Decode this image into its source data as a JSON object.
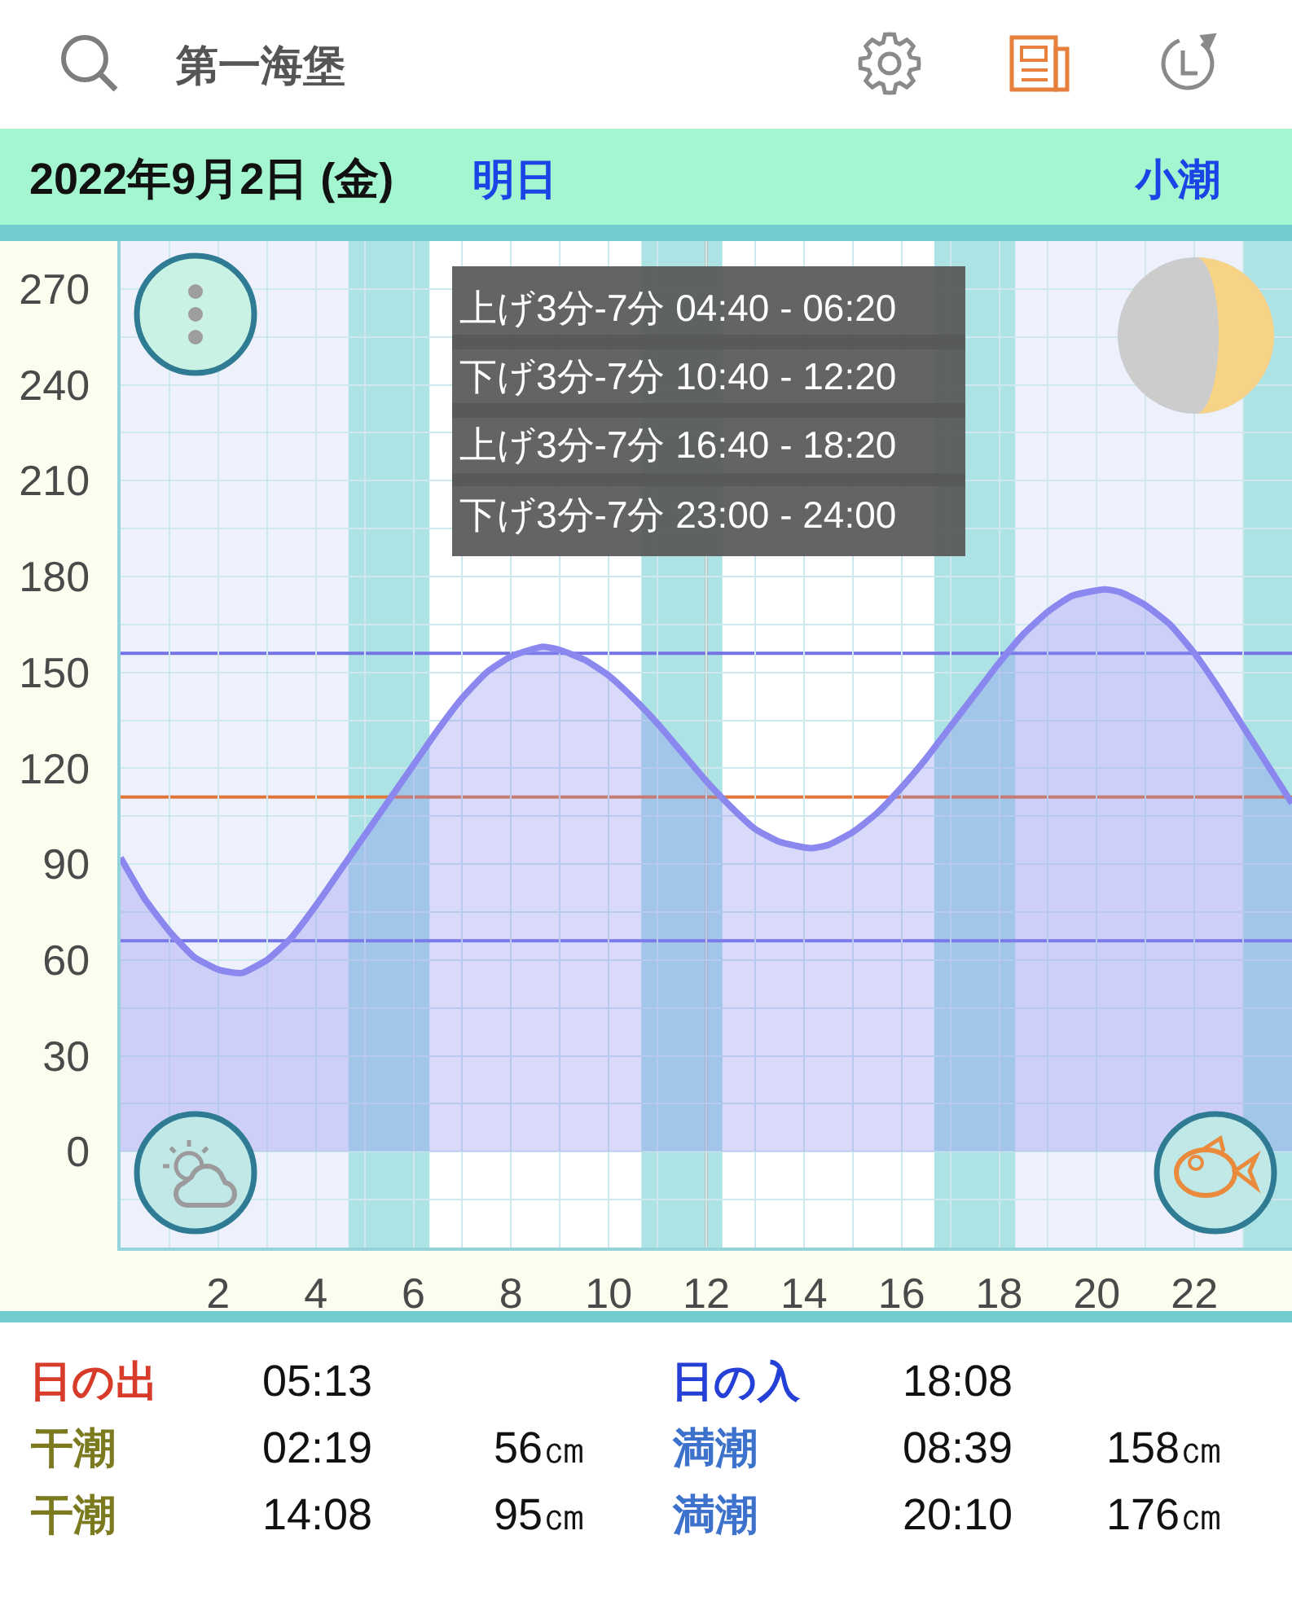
{
  "chart_data": {
    "type": "area",
    "title": "第一海堡",
    "subtitle": "2022年9月2日 (金)",
    "annotations": [
      "明日",
      "小潮",
      "上げ3分-7分 04:40 - 06:20",
      "下げ3分-7分 10:40 - 12:20",
      "上げ3分-7分 16:40 - 18:20",
      "下げ3分-7分 23:00 - 24:00",
      "日の出",
      "05:13",
      "日の入",
      "18:08",
      "干潮",
      "02:19",
      "56㎝",
      "満潮",
      "08:39",
      "158㎝",
      "干潮",
      "14:08",
      "95㎝",
      "満潮",
      "20:10",
      "176㎝"
    ],
    "x": [
      0,
      0.5,
      1,
      1.5,
      2,
      2.32,
      2.5,
      3,
      3.5,
      4,
      4.5,
      5,
      5.5,
      6,
      6.5,
      7,
      7.5,
      8,
      8.65,
      9,
      9.5,
      10,
      10.5,
      11,
      11.5,
      12,
      12.5,
      13,
      13.5,
      14.13,
      14.5,
      15,
      15.5,
      16,
      16.5,
      17,
      17.5,
      18,
      18.5,
      19,
      19.5,
      20.17,
      20.5,
      21,
      21.5,
      22,
      22.5,
      23,
      23.5,
      24
    ],
    "values": [
      92,
      79,
      69,
      61,
      57,
      56,
      56,
      60,
      67,
      77,
      88,
      99,
      110,
      121,
      132,
      142,
      150,
      155,
      158,
      157,
      154,
      149,
      142,
      134,
      125,
      116,
      108,
      101,
      97,
      95,
      96,
      100,
      106,
      114,
      123,
      133,
      143,
      153,
      162,
      169,
      174,
      176,
      175,
      171,
      165,
      156,
      145,
      133,
      121,
      109
    ],
    "color": "#8a88ee",
    "xlim": [
      0,
      24
    ],
    "ylim": [
      -30,
      285
    ],
    "xticks": [
      {
        "value": 1,
        "label": null
      },
      2,
      {
        "value": 3,
        "label": null
      },
      4,
      {
        "value": 5,
        "label": null
      },
      6,
      {
        "value": 7,
        "label": null
      },
      8,
      {
        "value": 9,
        "label": null
      },
      10,
      {
        "value": 11,
        "label": null
      },
      12,
      {
        "value": 13,
        "label": null
      },
      14,
      {
        "value": 15,
        "label": null
      },
      16,
      {
        "value": 17,
        "label": null
      },
      18,
      {
        "value": 19,
        "label": null
      },
      20,
      {
        "value": 21,
        "label": null
      },
      22,
      {
        "value": 23,
        "label": null
      }
    ],
    "yticks": [
      {
        "value": -15,
        "label": null
      },
      0,
      {
        "value": 15,
        "label": null
      },
      30,
      {
        "value": 45,
        "label": null
      },
      60,
      {
        "value": 75,
        "label": null
      },
      90,
      {
        "value": 105,
        "label": null
      },
      120,
      {
        "value": 135,
        "label": null
      },
      150,
      {
        "value": 165,
        "label": null
      },
      180,
      {
        "value": 195,
        "label": null
      },
      210,
      {
        "value": 225,
        "label": null
      },
      240,
      {
        "value": 255,
        "label": null
      },
      270
    ],
    "grid": true,
    "ref_lines": [
      {
        "axis": "y",
        "value": 156,
        "color": "#7473e6"
      },
      {
        "axis": "y",
        "value": 66,
        "color": "#7473e6"
      },
      {
        "axis": "y",
        "value": 111,
        "color": "#e2773b"
      },
      {
        "axis": "x",
        "value": 12,
        "color": "#d8804f"
      }
    ],
    "bands": [
      {
        "axis": "x",
        "from": 0,
        "to": 5.22,
        "color": "#eef0fc"
      },
      {
        "axis": "x",
        "from": 18.13,
        "to": 24,
        "color": "#eef0fc"
      },
      {
        "axis": "x",
        "from": 4.67,
        "to": 6.33,
        "color": "#aee3e6"
      },
      {
        "axis": "x",
        "from": 10.67,
        "to": 12.33,
        "color": "#aee3e6"
      },
      {
        "axis": "x",
        "from": 16.67,
        "to": 18.33,
        "color": "#aee3e6"
      },
      {
        "axis": "x",
        "from": 23,
        "to": 24,
        "color": "#aee3e6"
      }
    ]
  }
}
